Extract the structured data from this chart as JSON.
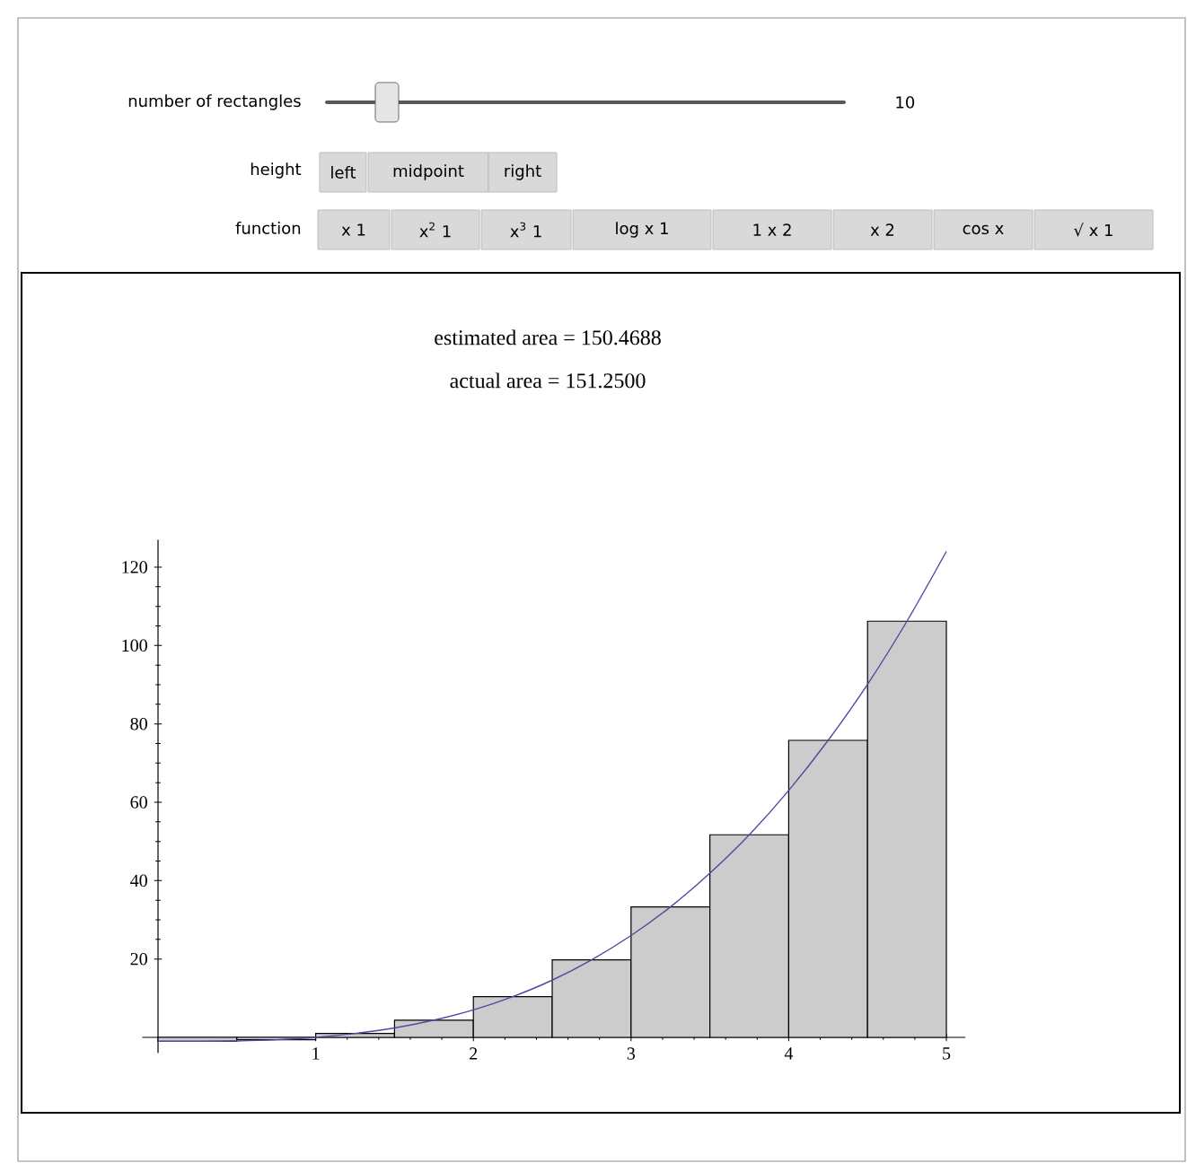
{
  "chart_data": {
    "type": "bar",
    "title": "estimated area = 150.4688",
    "subtitle": "actual area = 151.2500",
    "series": [
      {
        "color": "#cccccc",
        "x": [
          0.25,
          0.75,
          1.25,
          1.75,
          2.25,
          2.75,
          3.25,
          3.75,
          4.25,
          4.75
        ],
        "values": [
          -1,
          -0.6,
          1,
          4.4,
          10.4,
          19.8,
          33.3,
          51.7,
          75.8,
          106.2
        ]
      },
      {
        "type": "line",
        "color": "#4b4ba6",
        "x": [
          0,
          0.25,
          0.5,
          0.75,
          1,
          1.25,
          1.5,
          1.75,
          2,
          2.25,
          2.5,
          2.75,
          3,
          3.25,
          3.5,
          3.75,
          4,
          4.25,
          4.5,
          4.75,
          5
        ],
        "values": [
          -1,
          -1,
          -0.9,
          -0.6,
          0,
          1,
          2.4,
          4.4,
          7,
          10.4,
          14.6,
          19.8,
          26,
          33.3,
          41.9,
          51.7,
          63,
          75.8,
          90.1,
          106.2,
          124
        ]
      }
    ],
    "xlim": [
      -0.1,
      5.12
    ],
    "ylim": [
      -4,
      127
    ],
    "xticks": [
      1,
      2,
      3,
      4,
      5
    ],
    "yticks": [
      20,
      40,
      60,
      80,
      100,
      120
    ],
    "grid": false,
    "annotations": [
      "number of rectangles",
      "10",
      "height",
      "left",
      "midpoint",
      "right",
      "function",
      "x 1",
      "x$^{2}$ 1",
      "x$^{3}$ 1",
      "log x 1",
      "1 x 2",
      "x 2",
      "cos x",
      "√ x 1"
    ]
  }
}
